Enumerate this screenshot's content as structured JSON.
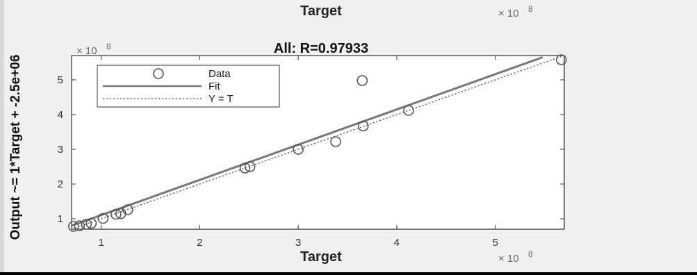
{
  "figure": {
    "top_label": "Target",
    "top_multiplier": "× 10",
    "top_exponent": "8",
    "background": "#f0f0f0"
  },
  "chart_data": {
    "type": "scatter",
    "title": "All: R=0.97933",
    "xlabel": "Target",
    "ylabel": "Output ~= 1*Target + -2.5e+06",
    "x_multiplier": "× 10",
    "x_exponent": "8",
    "y_multiplier": "× 10",
    "y_exponent": "8",
    "xlim": [
      0.7,
      5.7
    ],
    "ylim": [
      0.7,
      5.7
    ],
    "x_ticks": [
      1,
      2,
      3,
      4,
      5
    ],
    "y_ticks": [
      1,
      2,
      3,
      4,
      5
    ],
    "grid": false,
    "legend_placement": "top-left",
    "legend": [
      "Data",
      "Fit",
      "Y = T"
    ],
    "series": [
      {
        "name": "Data",
        "kind": "points",
        "color": "#555555",
        "points": [
          {
            "x": 0.72,
            "y": 0.78
          },
          {
            "x": 0.78,
            "y": 0.8
          },
          {
            "x": 0.85,
            "y": 0.84
          },
          {
            "x": 0.9,
            "y": 0.87
          },
          {
            "x": 1.02,
            "y": 1.01
          },
          {
            "x": 1.15,
            "y": 1.13
          },
          {
            "x": 1.2,
            "y": 1.15
          },
          {
            "x": 1.27,
            "y": 1.26
          },
          {
            "x": 2.46,
            "y": 2.46
          },
          {
            "x": 2.51,
            "y": 2.5
          },
          {
            "x": 3.0,
            "y": 3.0
          },
          {
            "x": 3.38,
            "y": 3.22
          },
          {
            "x": 3.65,
            "y": 4.98
          },
          {
            "x": 3.66,
            "y": 3.67
          },
          {
            "x": 4.12,
            "y": 4.12
          },
          {
            "x": 5.67,
            "y": 5.58
          }
        ]
      },
      {
        "name": "Fit",
        "kind": "line",
        "color": "#777777",
        "points": [
          {
            "x": 0.7,
            "y": 0.8
          },
          {
            "x": 5.48,
            "y": 5.65
          }
        ]
      },
      {
        "name": "Y = T",
        "kind": "dotted",
        "color": "#444444",
        "points": [
          {
            "x": 0.7,
            "y": 0.7
          },
          {
            "x": 5.7,
            "y": 5.7
          }
        ]
      }
    ]
  }
}
